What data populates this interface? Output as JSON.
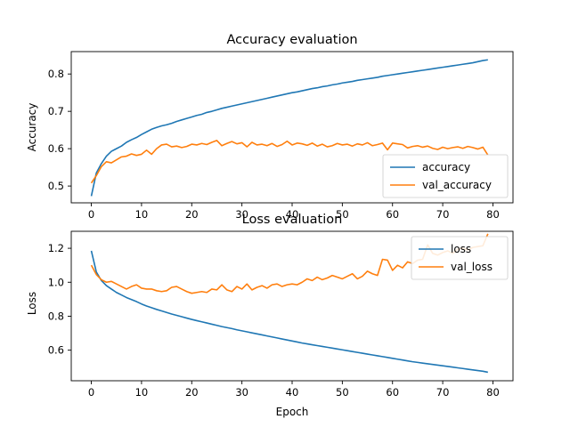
{
  "chart_data": [
    {
      "type": "line",
      "title": "Accuracy evaluation",
      "xlabel": "",
      "ylabel": "Accuracy",
      "xlim": [
        -4,
        84
      ],
      "ylim": [
        0.455,
        0.86
      ],
      "xticks": [
        0,
        10,
        20,
        30,
        40,
        50,
        60,
        70,
        80
      ],
      "yticks": [
        0.5,
        0.6,
        0.7,
        0.8
      ],
      "grid": false,
      "legend_position": "lower right",
      "series": [
        {
          "name": "accuracy",
          "color": "#1f77b4",
          "x": [
            0,
            1,
            2,
            3,
            4,
            5,
            6,
            7,
            8,
            9,
            10,
            11,
            12,
            13,
            14,
            15,
            16,
            17,
            18,
            19,
            20,
            21,
            22,
            23,
            24,
            25,
            26,
            27,
            28,
            29,
            30,
            31,
            32,
            33,
            34,
            35,
            36,
            37,
            38,
            39,
            40,
            41,
            42,
            43,
            44,
            45,
            46,
            47,
            48,
            49,
            50,
            51,
            52,
            53,
            54,
            55,
            56,
            57,
            58,
            59,
            60,
            61,
            62,
            63,
            64,
            65,
            66,
            67,
            68,
            69,
            70,
            71,
            72,
            73,
            74,
            75,
            76,
            77,
            78,
            79
          ],
          "values": [
            0.473,
            0.535,
            0.56,
            0.58,
            0.593,
            0.6,
            0.607,
            0.617,
            0.624,
            0.63,
            0.638,
            0.645,
            0.652,
            0.657,
            0.661,
            0.664,
            0.668,
            0.673,
            0.677,
            0.681,
            0.685,
            0.689,
            0.692,
            0.697,
            0.7,
            0.704,
            0.708,
            0.711,
            0.714,
            0.717,
            0.72,
            0.723,
            0.726,
            0.729,
            0.732,
            0.735,
            0.738,
            0.741,
            0.744,
            0.747,
            0.75,
            0.752,
            0.755,
            0.758,
            0.761,
            0.763,
            0.766,
            0.768,
            0.771,
            0.773,
            0.776,
            0.778,
            0.78,
            0.783,
            0.785,
            0.787,
            0.789,
            0.791,
            0.794,
            0.796,
            0.798,
            0.8,
            0.802,
            0.804,
            0.806,
            0.808,
            0.81,
            0.812,
            0.814,
            0.816,
            0.818,
            0.82,
            0.822,
            0.824,
            0.826,
            0.828,
            0.83,
            0.833,
            0.836,
            0.838
          ]
        },
        {
          "name": "val_accuracy",
          "color": "#ff7f0e",
          "x": [
            0,
            1,
            2,
            3,
            4,
            5,
            6,
            7,
            8,
            9,
            10,
            11,
            12,
            13,
            14,
            15,
            16,
            17,
            18,
            19,
            20,
            21,
            22,
            23,
            24,
            25,
            26,
            27,
            28,
            29,
            30,
            31,
            32,
            33,
            34,
            35,
            36,
            37,
            38,
            39,
            40,
            41,
            42,
            43,
            44,
            45,
            46,
            47,
            48,
            49,
            50,
            51,
            52,
            53,
            54,
            55,
            56,
            57,
            58,
            59,
            60,
            61,
            62,
            63,
            64,
            65,
            66,
            67,
            68,
            69,
            70,
            71,
            72,
            73,
            74,
            75,
            76,
            77,
            78,
            79
          ],
          "values": [
            0.508,
            0.528,
            0.552,
            0.565,
            0.562,
            0.57,
            0.578,
            0.58,
            0.586,
            0.582,
            0.585,
            0.596,
            0.585,
            0.6,
            0.61,
            0.612,
            0.605,
            0.607,
            0.603,
            0.606,
            0.612,
            0.61,
            0.614,
            0.611,
            0.617,
            0.622,
            0.608,
            0.614,
            0.619,
            0.613,
            0.616,
            0.605,
            0.617,
            0.61,
            0.612,
            0.608,
            0.614,
            0.606,
            0.611,
            0.62,
            0.61,
            0.615,
            0.613,
            0.609,
            0.615,
            0.607,
            0.612,
            0.605,
            0.608,
            0.614,
            0.61,
            0.612,
            0.607,
            0.613,
            0.61,
            0.616,
            0.608,
            0.611,
            0.615,
            0.597,
            0.615,
            0.613,
            0.611,
            0.602,
            0.606,
            0.608,
            0.604,
            0.607,
            0.601,
            0.598,
            0.604,
            0.6,
            0.603,
            0.605,
            0.601,
            0.606,
            0.603,
            0.599,
            0.604,
            0.583
          ]
        }
      ]
    },
    {
      "type": "line",
      "title": "Loss evaluation",
      "xlabel": "Epoch",
      "ylabel": "Loss",
      "xlim": [
        -4,
        84
      ],
      "ylim": [
        0.42,
        1.3
      ],
      "xticks": [
        0,
        10,
        20,
        30,
        40,
        50,
        60,
        70,
        80
      ],
      "yticks": [
        0.6,
        0.8,
        1.0,
        1.2
      ],
      "grid": false,
      "legend_position": "upper right",
      "series": [
        {
          "name": "loss",
          "color": "#1f77b4",
          "x": [
            0,
            1,
            2,
            3,
            4,
            5,
            6,
            7,
            8,
            9,
            10,
            11,
            12,
            13,
            14,
            15,
            16,
            17,
            18,
            19,
            20,
            21,
            22,
            23,
            24,
            25,
            26,
            27,
            28,
            29,
            30,
            31,
            32,
            33,
            34,
            35,
            36,
            37,
            38,
            39,
            40,
            41,
            42,
            43,
            44,
            45,
            46,
            47,
            48,
            49,
            50,
            51,
            52,
            53,
            54,
            55,
            56,
            57,
            58,
            59,
            60,
            61,
            62,
            63,
            64,
            65,
            66,
            67,
            68,
            69,
            70,
            71,
            72,
            73,
            74,
            75,
            76,
            77,
            78,
            79
          ],
          "values": [
            1.185,
            1.06,
            1.01,
            0.98,
            0.96,
            0.94,
            0.925,
            0.91,
            0.898,
            0.886,
            0.872,
            0.86,
            0.85,
            0.84,
            0.831,
            0.822,
            0.813,
            0.805,
            0.797,
            0.789,
            0.781,
            0.774,
            0.767,
            0.76,
            0.753,
            0.746,
            0.739,
            0.733,
            0.727,
            0.72,
            0.714,
            0.708,
            0.702,
            0.696,
            0.69,
            0.684,
            0.678,
            0.672,
            0.666,
            0.66,
            0.654,
            0.648,
            0.642,
            0.637,
            0.632,
            0.627,
            0.622,
            0.617,
            0.612,
            0.607,
            0.602,
            0.597,
            0.592,
            0.587,
            0.582,
            0.577,
            0.572,
            0.567,
            0.562,
            0.557,
            0.552,
            0.547,
            0.542,
            0.537,
            0.532,
            0.528,
            0.524,
            0.52,
            0.516,
            0.512,
            0.508,
            0.504,
            0.5,
            0.496,
            0.492,
            0.488,
            0.484,
            0.48,
            0.476,
            0.47
          ]
        },
        {
          "name": "val_loss",
          "color": "#ff7f0e",
          "x": [
            0,
            1,
            2,
            3,
            4,
            5,
            6,
            7,
            8,
            9,
            10,
            11,
            12,
            13,
            14,
            15,
            16,
            17,
            18,
            19,
            20,
            21,
            22,
            23,
            24,
            25,
            26,
            27,
            28,
            29,
            30,
            31,
            32,
            33,
            34,
            35,
            36,
            37,
            38,
            39,
            40,
            41,
            42,
            43,
            44,
            45,
            46,
            47,
            48,
            49,
            50,
            51,
            52,
            53,
            54,
            55,
            56,
            57,
            58,
            59,
            60,
            61,
            62,
            63,
            64,
            65,
            66,
            67,
            68,
            69,
            70,
            71,
            72,
            73,
            74,
            75,
            76,
            77,
            78,
            79
          ],
          "values": [
            1.1,
            1.045,
            1.015,
            1.0,
            1.005,
            0.99,
            0.975,
            0.96,
            0.975,
            0.985,
            0.965,
            0.96,
            0.96,
            0.95,
            0.945,
            0.95,
            0.97,
            0.975,
            0.96,
            0.945,
            0.935,
            0.94,
            0.945,
            0.94,
            0.96,
            0.955,
            0.985,
            0.955,
            0.945,
            0.975,
            0.96,
            0.99,
            0.955,
            0.97,
            0.98,
            0.965,
            0.985,
            0.99,
            0.975,
            0.985,
            0.99,
            0.985,
            1.0,
            1.02,
            1.01,
            1.03,
            1.015,
            1.025,
            1.04,
            1.03,
            1.02,
            1.035,
            1.05,
            1.02,
            1.035,
            1.065,
            1.05,
            1.04,
            1.135,
            1.13,
            1.07,
            1.1,
            1.085,
            1.12,
            1.11,
            1.13,
            1.135,
            1.22,
            1.17,
            1.16,
            1.175,
            1.185,
            1.17,
            1.195,
            1.2,
            1.19,
            1.205,
            1.21,
            1.215,
            1.285
          ]
        }
      ]
    }
  ]
}
